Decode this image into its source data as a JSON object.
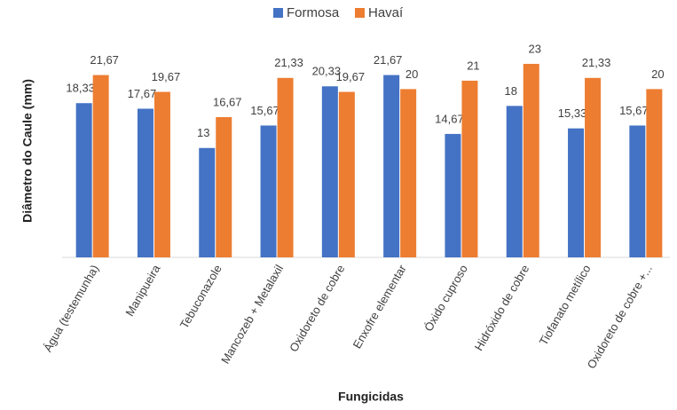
{
  "chart_data": {
    "type": "bar",
    "x_label": "Fungicidas",
    "y_label": "Diâmetro do Caule (mm)",
    "categories": [
      "Água (testemunha)",
      "Manipueira",
      "Tebuconazole",
      "Mancozeb + Metalaxil",
      "Oxidoreto de cobre",
      "Enxofre elementar",
      "Óxido cuproso",
      "Hidróxido de cobre",
      "Tiofanato metílico",
      "Oxidoreto de cobre +..."
    ],
    "series": [
      {
        "name": "Formosa",
        "color": "#4472c4",
        "values": [
          18.33,
          17.67,
          13,
          15.67,
          20.33,
          21.67,
          14.67,
          18,
          15.33,
          15.67
        ],
        "value_labels": [
          "18,33",
          "17,67",
          "13",
          "15,67",
          "20,33",
          "21,67",
          "14,67",
          "18",
          "15,33",
          "15,67"
        ]
      },
      {
        "name": "Havaí",
        "color": "#ed7d31",
        "values": [
          21.67,
          19.67,
          16.67,
          21.33,
          19.67,
          20,
          21,
          23,
          21.33,
          20
        ],
        "value_labels": [
          "21,67",
          "19,67",
          "16,67",
          "21,33",
          "19,67",
          "20",
          "21",
          "23",
          "21,33",
          "20"
        ]
      }
    ],
    "ylim": [
      0,
      25
    ],
    "legend": "top"
  }
}
